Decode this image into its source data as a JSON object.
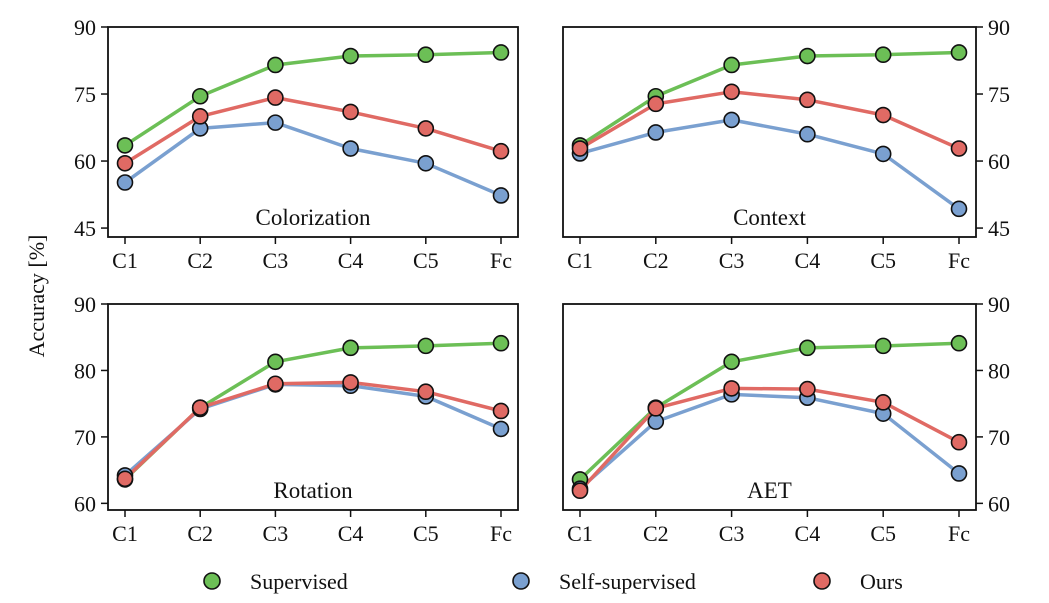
{
  "chart_data": {
    "type": "line",
    "ylabel": "Accuracy [%]",
    "categories": [
      "C1",
      "C2",
      "C3",
      "C4",
      "C5",
      "Fc"
    ],
    "legend": [
      {
        "name": "Supervised",
        "color": "#6cbf56"
      },
      {
        "name": "Self-supervised",
        "color": "#7aa0d0"
      },
      {
        "name": "Ours",
        "color": "#e06a64"
      }
    ],
    "panels": [
      {
        "title": "Colorization",
        "ylim": [
          43,
          90
        ],
        "yticks": [
          45,
          60,
          75,
          90
        ],
        "yaxis_side": "left",
        "series": [
          {
            "name": "Supervised",
            "values": [
              63.5,
              74.5,
              81.5,
              83.5,
              83.8,
              84.3
            ]
          },
          {
            "name": "Self-supervised",
            "values": [
              55.2,
              67.3,
              68.6,
              62.8,
              59.5,
              52.3
            ]
          },
          {
            "name": "Ours",
            "values": [
              59.5,
              70.0,
              74.2,
              71.0,
              67.3,
              62.2
            ]
          }
        ]
      },
      {
        "title": "Context",
        "ylim": [
          43,
          90
        ],
        "yticks": [
          45,
          60,
          75,
          90
        ],
        "yaxis_side": "right",
        "series": [
          {
            "name": "Supervised",
            "values": [
              63.5,
              74.5,
              81.5,
              83.5,
              83.8,
              84.3
            ]
          },
          {
            "name": "Self-supervised",
            "values": [
              61.7,
              66.4,
              69.2,
              66.0,
              61.6,
              49.3
            ]
          },
          {
            "name": "Ours",
            "values": [
              62.8,
              72.8,
              75.5,
              73.7,
              70.3,
              62.8
            ]
          }
        ]
      },
      {
        "title": "Rotation",
        "ylim": [
          59,
          90
        ],
        "yticks": [
          60,
          70,
          80,
          90
        ],
        "yaxis_side": "left",
        "series": [
          {
            "name": "Supervised",
            "values": [
              63.6,
              74.4,
              81.3,
              83.4,
              83.7,
              84.1
            ]
          },
          {
            "name": "Self-supervised",
            "values": [
              64.2,
              74.2,
              77.9,
              77.7,
              76.1,
              71.2
            ]
          },
          {
            "name": "Ours",
            "values": [
              63.7,
              74.4,
              78.0,
              78.2,
              76.8,
              73.9
            ]
          }
        ]
      },
      {
        "title": "AET",
        "ylim": [
          59,
          90
        ],
        "yticks": [
          60,
          70,
          80,
          90
        ],
        "yaxis_side": "right",
        "series": [
          {
            "name": "Supervised",
            "values": [
              63.6,
              74.4,
              81.3,
              83.4,
              83.7,
              84.1
            ]
          },
          {
            "name": "Self-supervised",
            "values": [
              62.2,
              72.3,
              76.4,
              75.9,
              73.5,
              64.5
            ]
          },
          {
            "name": "Ours",
            "values": [
              61.9,
              74.3,
              77.3,
              77.2,
              75.2,
              69.2
            ]
          }
        ]
      }
    ]
  }
}
